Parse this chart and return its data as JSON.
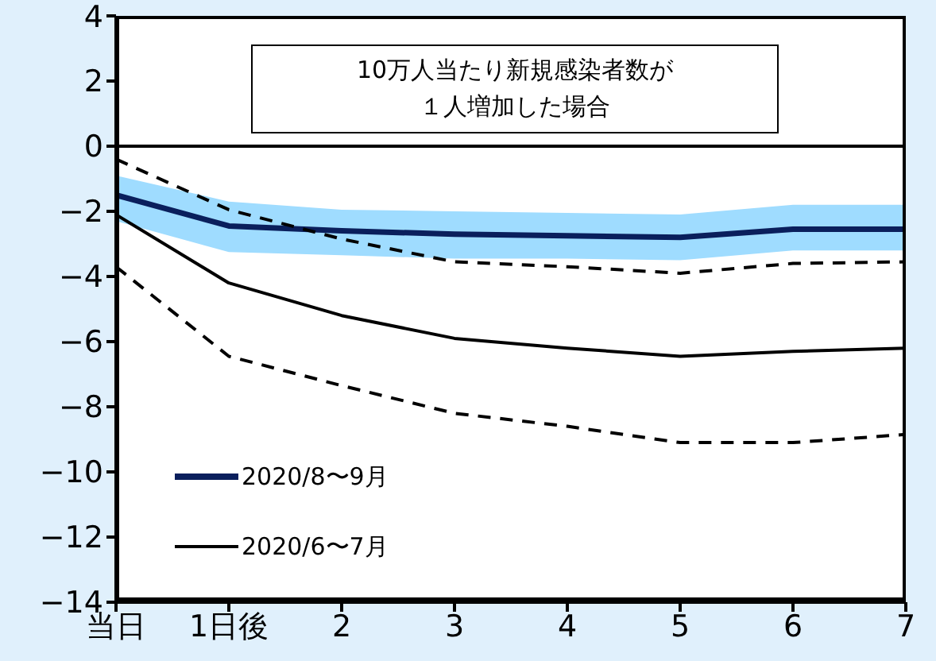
{
  "chart_data": {
    "type": "line",
    "categories": [
      "当日",
      "1日後",
      "2",
      "3",
      "4",
      "5",
      "6",
      "7"
    ],
    "series": [
      {
        "name": "2020/8〜9月",
        "color": "#0a1f5c",
        "values": [
          -1.5,
          -2.45,
          -2.6,
          -2.7,
          -2.75,
          -2.8,
          -2.55,
          -2.55
        ],
        "lower": [
          -2.3,
          -3.25,
          -3.35,
          -3.45,
          -3.45,
          -3.5,
          -3.2,
          -3.2
        ],
        "upper": [
          -0.9,
          -1.7,
          -1.95,
          -2.0,
          -2.05,
          -2.1,
          -1.8,
          -1.8
        ]
      },
      {
        "name": "2020/6〜7月",
        "color": "#000000",
        "values": [
          -2.1,
          -4.2,
          -5.2,
          -5.9,
          -6.2,
          -6.45,
          -6.3,
          -6.2
        ]
      },
      {
        "color": "#000000",
        "line_style": "dashed",
        "values": [
          -0.4,
          -1.95,
          -2.85,
          -3.55,
          -3.7,
          -3.9,
          -3.6,
          -3.55
        ]
      },
      {
        "color": "#000000",
        "line_style": "dashed",
        "values": [
          -3.7,
          -6.45,
          -7.35,
          -8.2,
          -8.6,
          -9.1,
          -9.1,
          -8.85
        ]
      }
    ],
    "ylim": [
      -14,
      4
    ],
    "yticks": [
      -14,
      -12,
      -10,
      -8,
      -6,
      -4,
      -2,
      0,
      2,
      4
    ],
    "ref_lines": [
      {
        "axis": "y",
        "value": 0,
        "color": "#000000"
      }
    ],
    "annotations": [
      "10万人当たり新規感染者数が１人増加した場合"
    ],
    "legend": "bottom left",
    "grid": false,
    "marker": "none",
    "line_style": "solid"
  }
}
